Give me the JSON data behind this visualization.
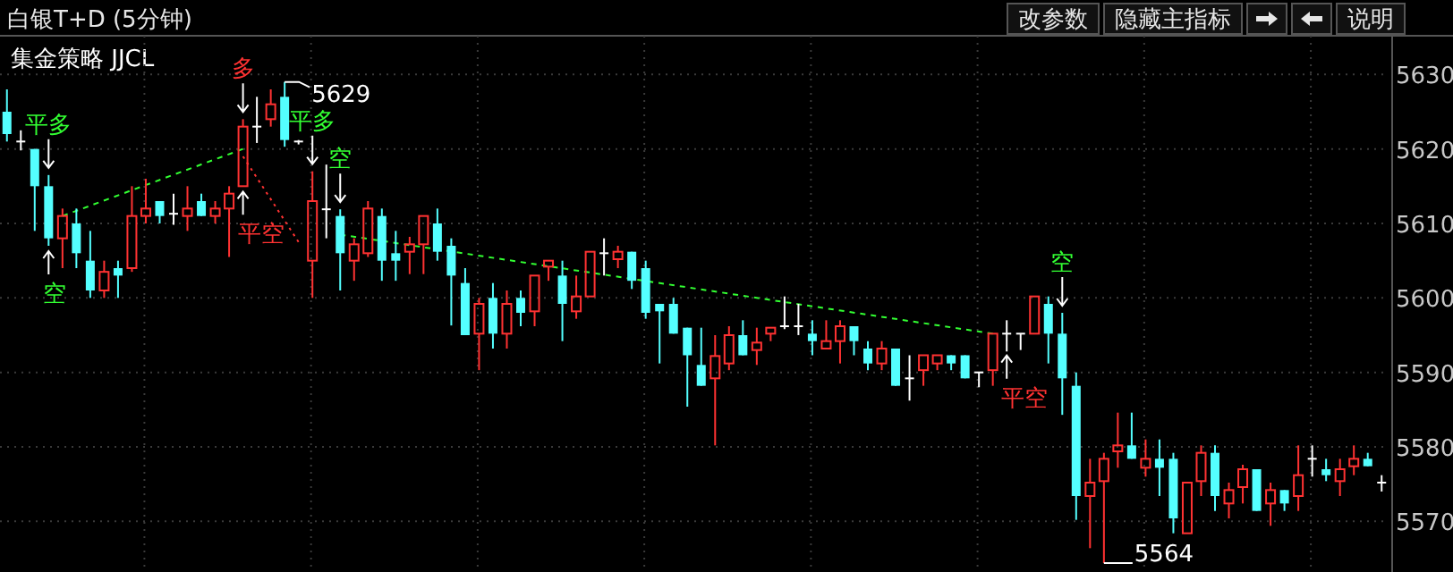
{
  "chart_data": {
    "type": "candlestick",
    "title": "白银T+D (5分钟)",
    "subtitle": "集金策略 JJCL",
    "categories": [
      null,
      null,
      null,
      null,
      null,
      null,
      null,
      null,
      null,
      null,
      null,
      null,
      null,
      null,
      null,
      null,
      null,
      null,
      null,
      null,
      null,
      null,
      null,
      null,
      null,
      null,
      null,
      null,
      null,
      null,
      null,
      null,
      null,
      null,
      null,
      null,
      null,
      null,
      null,
      null,
      null,
      null,
      null,
      null,
      null,
      null,
      null,
      null,
      null,
      null,
      null,
      null,
      null,
      null,
      null,
      null,
      null,
      null,
      null,
      null,
      null,
      null,
      null,
      null,
      null,
      null,
      null,
      null,
      null,
      null,
      null,
      null,
      null,
      null,
      null,
      null,
      null,
      null,
      null,
      null,
      null,
      null,
      null,
      null,
      null,
      null,
      null,
      null,
      null,
      null,
      null,
      null,
      null,
      null,
      null,
      null,
      null,
      null,
      null,
      null
    ],
    "ohlc": [
      [
        5625,
        5628,
        5621,
        5622
      ],
      [
        5621,
        5622.5,
        5620,
        5621
      ],
      [
        5620,
        5620,
        5609,
        5615
      ],
      [
        5615,
        5616.5,
        5607,
        5608
      ],
      [
        5608,
        5612,
        5604,
        5611
      ],
      [
        5610,
        5612,
        5604,
        5606
      ],
      [
        5605,
        5609,
        5600,
        5601
      ],
      [
        5601,
        5605,
        5600,
        5603.5
      ],
      [
        5604,
        5605,
        5600,
        5603
      ],
      [
        5604,
        5615,
        5603.5,
        5611
      ],
      [
        5611,
        5616,
        5610,
        5612
      ],
      [
        5613,
        5613,
        5610,
        5611
      ],
      [
        5611.3,
        5614,
        5610,
        5611.3
      ],
      [
        5611,
        5615,
        5609,
        5612
      ],
      [
        5613,
        5614,
        5611,
        5611
      ],
      [
        5611,
        5613,
        5610,
        5612
      ],
      [
        5612,
        5615,
        5605.5,
        5614
      ],
      [
        5615,
        5624,
        5615,
        5623
      ],
      [
        5623,
        5627,
        5621,
        5623
      ],
      [
        5624,
        5628,
        5623,
        5626
      ],
      [
        5627,
        5629,
        5620.3,
        5621.2
      ],
      [
        5621,
        5621.2,
        5620.8,
        5621
      ],
      [
        5605,
        5617,
        5600,
        5613
      ],
      [
        5611.9,
        5617.9,
        5608.2,
        5611.9
      ],
      [
        5611,
        5611.9,
        5601,
        5606
      ],
      [
        5605,
        5608,
        5602.3,
        5607.2
      ],
      [
        5606,
        5613,
        5605.5,
        5612
      ],
      [
        5611,
        5612,
        5602.3,
        5605
      ],
      [
        5606,
        5609,
        5602.3,
        5605
      ],
      [
        5606.2,
        5608.2,
        5603.2,
        5607.2
      ],
      [
        5607.2,
        5611,
        5603.2,
        5611
      ],
      [
        5610,
        5612,
        5605,
        5606.2
      ],
      [
        5607,
        5608,
        5596.3,
        5603
      ],
      [
        5602,
        5604,
        5595,
        5595
      ],
      [
        5595.2,
        5600,
        5590.3,
        5599.2
      ],
      [
        5600,
        5602,
        5593.2,
        5595.2
      ],
      [
        5595.2,
        5601,
        5593.2,
        5599.2
      ],
      [
        5600,
        5601,
        5596.2,
        5598
      ],
      [
        5598.2,
        5603,
        5596.2,
        5603
      ],
      [
        5604.2,
        5605,
        5602.3,
        5605
      ],
      [
        5603,
        5605,
        5594.2,
        5599.2
      ],
      [
        5598.2,
        5603,
        5597.2,
        5600.2
      ],
      [
        5600.2,
        5606.2,
        5600.2,
        5606.2
      ],
      [
        5606,
        5608,
        5603.2,
        5606
      ],
      [
        5605.2,
        5607,
        5604,
        5606.2
      ],
      [
        5606.2,
        5606.2,
        5601.2,
        5602.3
      ],
      [
        5604,
        5605,
        5597.2,
        5598
      ],
      [
        5599.2,
        5599.2,
        5591.2,
        5598.2
      ],
      [
        5599.2,
        5600,
        5595.2,
        5595.2
      ],
      [
        5596,
        5596,
        5585.4,
        5592.3
      ],
      [
        5591,
        5596,
        5588.2,
        5588.2
      ],
      [
        5589.2,
        5595,
        5580.2,
        5592.2
      ],
      [
        5591.2,
        5596.2,
        5590.3,
        5595
      ],
      [
        5595,
        5597,
        5592.3,
        5592.3
      ],
      [
        5593,
        5596,
        5591,
        5594
      ],
      [
        5595.2,
        5596,
        5594.2,
        5596
      ],
      [
        5596.2,
        5600.2,
        5596,
        5596.2
      ],
      [
        5596.2,
        5599.2,
        5595.2,
        5596.2
      ],
      [
        5595.2,
        5597,
        5592.3,
        5594.2
      ],
      [
        5593.2,
        5597,
        5593.2,
        5594.2
      ],
      [
        5594.2,
        5597,
        5591.2,
        5596.2
      ],
      [
        5596.2,
        5596.2,
        5592.3,
        5594.2
      ],
      [
        5593.2,
        5594.2,
        5590.3,
        5591.2
      ],
      [
        5591.2,
        5594.2,
        5590.3,
        5593.2
      ],
      [
        5593.2,
        5593.2,
        5588.2,
        5588.2
      ],
      [
        5589.2,
        5592.3,
        5586.4,
        5589.2
      ],
      [
        5590.3,
        5592.3,
        5588.2,
        5592.3
      ],
      [
        5591.2,
        5592.3,
        5590.3,
        5592.3
      ],
      [
        5592.3,
        5592.3,
        5590.3,
        5591.2
      ],
      [
        5592.3,
        5592.3,
        5589.2,
        5589.2
      ],
      [
        5590,
        5590,
        5588.2,
        5590
      ],
      [
        5590.3,
        5595.2,
        5588.2,
        5595.2
      ],
      [
        5595.2,
        5597,
        5593,
        5595.2
      ],
      [
        5595.2,
        5595.2,
        5593.2,
        5595.2
      ],
      [
        5595.2,
        5600.2,
        5595.2,
        5600.2
      ],
      [
        5599.2,
        5600.2,
        5591.2,
        5595.2
      ],
      [
        5595.2,
        5598,
        5584.3,
        5589.2
      ],
      [
        5588.2,
        5590,
        5570.2,
        5573.4
      ],
      [
        5573.4,
        5578.4,
        5566.4,
        5575.2
      ],
      [
        5575.4,
        5579.2,
        5564.4,
        5578.4
      ],
      [
        5579.4,
        5584.6,
        5577.2,
        5580.2
      ],
      [
        5580.2,
        5584.6,
        5578.4,
        5578.4
      ],
      [
        5577.2,
        5581,
        5576,
        5578.4
      ],
      [
        5578.4,
        5581,
        5573.4,
        5577.2
      ],
      [
        5578.4,
        5579.2,
        5568.4,
        5570.4
      ],
      [
        5568.4,
        5575.2,
        5568.4,
        5575.2
      ],
      [
        5575.4,
        5580.2,
        5573.4,
        5579.2
      ],
      [
        5579.2,
        5580.2,
        5571.4,
        5573.4
      ],
      [
        5572.4,
        5575.2,
        5570.4,
        5574.2
      ],
      [
        5574.6,
        5577.6,
        5572.4,
        5577
      ],
      [
        5577,
        5577,
        5571.4,
        5571.4
      ],
      [
        5572.4,
        5575.2,
        5569.4,
        5574.2
      ],
      [
        5574.2,
        5574.2,
        5571.4,
        5572.4
      ],
      [
        5573.4,
        5580.2,
        5571.4,
        5576.2
      ],
      [
        5578.4,
        5580.2,
        5576.2,
        5578.4
      ],
      [
        5577,
        5578.4,
        5575.4,
        5576.2
      ],
      [
        5575.4,
        5578.4,
        5573.4,
        5577
      ],
      [
        5577.4,
        5580.2,
        5576.2,
        5578.4
      ],
      [
        5578.4,
        5579.2,
        5577.4,
        5577.4
      ],
      [
        5575.2,
        5576.2,
        5574.2,
        5575.2
      ]
    ],
    "series": [
      {
        "type": "line",
        "color": "#32ff32",
        "line_style": "dashed",
        "values": [
          null,
          null,
          null,
          null,
          5611,
          null,
          null,
          null,
          null,
          null,
          null,
          null,
          null,
          null,
          null,
          null,
          null,
          5620,
          null,
          null,
          null,
          null,
          null,
          null,
          null,
          null,
          null,
          null,
          null,
          null,
          null,
          null,
          null,
          null,
          null,
          null,
          null,
          null,
          null,
          null,
          null,
          null,
          null,
          null,
          null,
          null,
          null,
          null,
          null,
          null,
          null,
          null,
          null,
          null,
          null,
          null,
          null,
          null,
          null,
          null,
          null,
          null,
          null,
          null,
          null,
          null,
          null,
          null,
          null,
          null,
          null,
          null,
          null,
          null,
          null,
          null,
          null,
          null,
          null,
          null,
          null,
          null,
          null,
          null,
          null,
          null,
          null,
          null,
          null,
          null,
          null,
          null,
          null,
          null,
          null,
          null,
          null,
          null,
          null,
          null
        ]
      },
      {
        "type": "line",
        "color": "#32ff32",
        "line_style": "dashed",
        "values": [
          null,
          null,
          null,
          null,
          null,
          null,
          null,
          null,
          null,
          null,
          null,
          null,
          null,
          null,
          null,
          null,
          null,
          null,
          null,
          null,
          null,
          null,
          null,
          null,
          5608.5,
          null,
          null,
          null,
          null,
          null,
          null,
          null,
          null,
          null,
          null,
          null,
          null,
          null,
          null,
          null,
          null,
          null,
          null,
          null,
          null,
          null,
          null,
          null,
          null,
          null,
          null,
          null,
          null,
          null,
          null,
          null,
          null,
          null,
          null,
          null,
          null,
          null,
          null,
          null,
          null,
          null,
          null,
          null,
          null,
          null,
          null,
          5595.2,
          null,
          null,
          null,
          null,
          null,
          null,
          null,
          null,
          null,
          null,
          null,
          null,
          null,
          null,
          null,
          null,
          null,
          null,
          null,
          null,
          null,
          null,
          null,
          null,
          null,
          null,
          null,
          null
        ]
      },
      {
        "type": "line",
        "color": "#ff3232",
        "line_style": "dotted",
        "values": [
          null,
          null,
          null,
          null,
          null,
          null,
          null,
          null,
          null,
          null,
          null,
          null,
          null,
          null,
          null,
          null,
          null,
          5619,
          null,
          null,
          null,
          5607.5,
          null,
          null,
          null,
          null,
          null,
          null,
          null,
          null,
          null,
          null,
          null,
          null,
          null,
          null,
          null,
          null,
          null,
          null,
          null,
          null,
          null,
          null,
          null,
          null,
          null,
          null,
          null,
          null,
          null,
          null,
          null,
          null,
          null,
          null,
          null,
          null,
          null,
          null,
          null,
          null,
          null,
          null,
          null,
          null,
          null,
          null,
          null,
          null,
          null,
          null,
          null,
          null,
          null,
          null,
          null,
          null,
          null,
          null,
          null,
          null,
          null,
          null,
          null,
          null,
          null,
          null,
          null,
          null,
          null,
          null,
          null,
          null,
          null,
          null,
          null,
          null,
          null,
          null
        ]
      }
    ],
    "ylim": [
      5563.2,
      5635.2
    ],
    "yticks": [
      5570,
      5580,
      5590,
      5600,
      5610,
      5620,
      5630
    ],
    "grid": true,
    "tick_labels": "y",
    "annotations": [
      "改参数",
      "隐藏主指标",
      "说明",
      "平多",
      "空",
      "多",
      "平空",
      "5629",
      "平多",
      "空",
      "平空",
      "空",
      "5564"
    ]
  }
}
